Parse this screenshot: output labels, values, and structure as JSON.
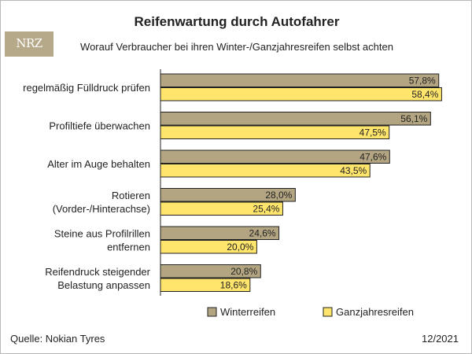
{
  "header": {
    "logo_text": "NRZ",
    "title": "Reifenwartung durch Autofahrer",
    "subtitle": "Worauf Verbraucher bei ihren Winter-/Ganzjahresreifen selbst achten"
  },
  "chart_data": {
    "type": "bar",
    "orientation": "horizontal",
    "categories": [
      [
        "regelmäßig Fülldruck prüfen"
      ],
      [
        "Profiltiefe überwachen"
      ],
      [
        "Alter im Auge behalten"
      ],
      [
        "Rotieren",
        "(Vorder-/Hinterachse)"
      ],
      [
        "Steine aus Profilrillen",
        "entfernen"
      ],
      [
        "Reifendruck steigender",
        "Belastung anpassen"
      ]
    ],
    "series": [
      {
        "name": "Winterreifen",
        "color": "#b3a581",
        "values": [
          57.8,
          56.1,
          47.6,
          28.0,
          24.6,
          20.8
        ],
        "labels": [
          "57,8%",
          "56,1%",
          "47,6%",
          "28,0%",
          "24,6%",
          "20,8%"
        ]
      },
      {
        "name": "Ganzjahresreifen",
        "color": "#ffe56b",
        "values": [
          58.4,
          47.5,
          43.5,
          25.4,
          20.0,
          18.6
        ],
        "labels": [
          "58,4%",
          "47,5%",
          "43,5%",
          "25,4%",
          "20,0%",
          "18,6%"
        ]
      }
    ],
    "xlim": [
      0,
      60
    ],
    "grid": false,
    "legend": "bottom"
  },
  "footer": {
    "source": "Quelle: Nokian Tyres",
    "date": "12/2021"
  }
}
